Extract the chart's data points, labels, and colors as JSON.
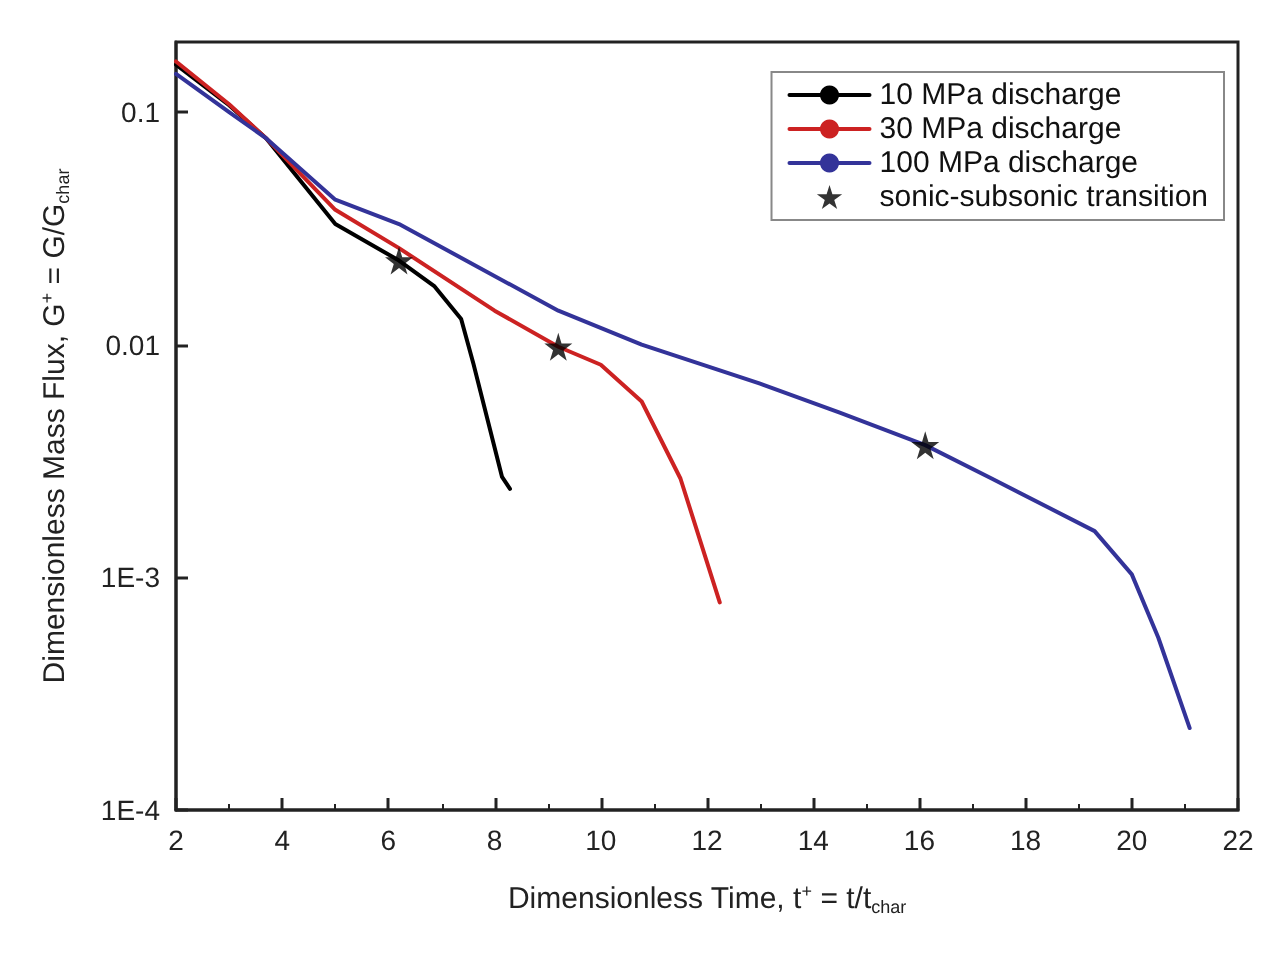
{
  "chart_data": {
    "type": "line",
    "xlabel": "Dimensionless Time, t$^{+}$ = t/t$_{char}$",
    "ylabel": "Dimensionless Mass Flux, G$^{+}$ = G/G$_{char}$",
    "log": "y",
    "grid": false,
    "legend": "top right",
    "line_style": "solid",
    "xlim": [
      2,
      22
    ],
    "xticks": [
      2,
      4,
      6,
      8,
      10,
      12,
      14,
      16,
      18,
      20,
      22
    ],
    "ylim": [
      0.0001,
      0.2
    ],
    "yticks": [
      {
        "value": 0.0001,
        "label": "1E-4"
      },
      {
        "value": 0.001,
        "label": "1E-3"
      },
      0.01,
      0.1
    ],
    "series": [
      {
        "name": "10 MPa discharge",
        "color": "#000000",
        "x": [
          2,
          3,
          3.7,
          5,
          6.2,
          6.87,
          7.37,
          7.6,
          8.14,
          8.29
        ],
        "values": [
          0.16,
          0.107,
          0.077,
          0.033,
          0.023,
          0.0178,
          0.0129,
          0.0083,
          0.0027,
          0.0024
        ]
      },
      {
        "name": "30 MPa discharge",
        "color": "#cc2222",
        "x": [
          2,
          3,
          3.7,
          5,
          6.2,
          8,
          9.2,
          10,
          10.77,
          11.5,
          12.24
        ],
        "values": [
          0.165,
          0.108,
          0.077,
          0.038,
          0.026,
          0.014,
          0.0098,
          0.0082,
          0.0057,
          0.00266,
          0.00078
        ]
      },
      {
        "name": "100 MPa discharge",
        "color": "#333399",
        "x": [
          2,
          3,
          3.7,
          5,
          6.2,
          9.2,
          10.77,
          13,
          14.5,
          16.11,
          17.36,
          19.3,
          20,
          20.5,
          21.09
        ],
        "values": [
          0.146,
          0.1,
          0.077,
          0.042,
          0.033,
          0.014,
          0.01,
          0.0068,
          0.0051,
          0.0037,
          0.00266,
          0.00158,
          0.00103,
          0.00055,
          0.000225
        ]
      },
      {
        "name": "sonic-subsonic transition",
        "type": "scatter",
        "marker": "star",
        "color": "#000000",
        "x": [
          6.2,
          9.2,
          16.11
        ],
        "values": [
          0.023,
          0.0098,
          0.0037
        ]
      }
    ]
  }
}
